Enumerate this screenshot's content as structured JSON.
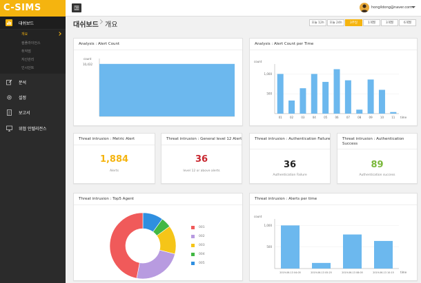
{
  "app": {
    "logo": "C-SIMS"
  },
  "sidebar": {
    "items": [
      {
        "label": "대쉬보드",
        "icon": "bar-chart-icon"
      },
      {
        "label": "분석",
        "icon": "edit-icon"
      },
      {
        "label": "설정",
        "icon": "gear-icon"
      },
      {
        "label": "보고서",
        "icon": "report-icon"
      },
      {
        "label": "위협 인텔리전스",
        "icon": "monitor-icon"
      }
    ],
    "submenu": [
      {
        "label": "개요"
      },
      {
        "label": "컴플라이언스"
      },
      {
        "label": "취약점"
      },
      {
        "label": "자산관리"
      },
      {
        "label": "인시던트"
      }
    ]
  },
  "topbar": {
    "user_email": "hongildong@naver.com"
  },
  "header": {
    "title": "대쉬보드",
    "breadcrumb": "개요"
  },
  "time_ranges": [
    {
      "label": "오늘 12h"
    },
    {
      "label": "오늘 24h"
    },
    {
      "label": "3주일"
    },
    {
      "label": "1개월"
    },
    {
      "label": "3개월"
    },
    {
      "label": "6개월"
    }
  ],
  "active_range": "3주일",
  "cards": {
    "alert_count": {
      "title": "Analysis : Alert Count"
    },
    "alert_per_time": {
      "title": "Analysis : Alert Count per Time"
    },
    "metric_alert": {
      "title": "Threat intrusion : Metric Alert",
      "value": "1,884",
      "sub": "Alerts",
      "color": "#f5b40f"
    },
    "general_alert": {
      "title": "Threat intrusion : General level 12 Alert",
      "value": "36",
      "sub": "level 12 or above alerts",
      "color": "#c8262e"
    },
    "auth_failure": {
      "title": "Threat intrusion : Authentication Failure",
      "value": "36",
      "sub": "Authentication Failure",
      "color": "#222222"
    },
    "auth_success": {
      "title": "Threat intrusion : Authentication Success",
      "value": "89",
      "sub": "Authentication success",
      "color": "#7ab83a"
    },
    "top5_agent": {
      "title": "Threat intrusion : Top5 Agent"
    },
    "alerts_per_time": {
      "title": "Threat intrusion : Alerts per time"
    }
  },
  "colors": {
    "accent": "#f5b40f",
    "bar": "#6cb8ee",
    "sidebar": "#2b2b2b"
  },
  "chart_data": [
    {
      "type": "area",
      "title": "Analysis : Alert Count",
      "ylabel": "count",
      "yticks": [
        "10,432"
      ],
      "values": [
        10432,
        10432
      ],
      "ylim": [
        0,
        11500
      ]
    },
    {
      "type": "bar",
      "title": "Analysis : Alert Count per Time",
      "ylabel": "count",
      "xlabel": "time",
      "categories": [
        "01",
        "02",
        "03",
        "04",
        "05",
        "06",
        "07",
        "08",
        "09",
        "10",
        "11"
      ],
      "values": [
        1000,
        330,
        640,
        1000,
        800,
        1120,
        840,
        100,
        860,
        600,
        40
      ],
      "yticks": [
        "1,000",
        "500"
      ],
      "ylim": [
        0,
        1250
      ]
    },
    {
      "type": "pie",
      "title": "Threat intrusion : Top5 Agent",
      "labels": [
        "001",
        "002",
        "003",
        "004",
        "005"
      ],
      "values": [
        47,
        24,
        14,
        5,
        10
      ],
      "colors": [
        "#f05a5a",
        "#b89be0",
        "#f5c518",
        "#42b844",
        "#2f8fe0"
      ]
    },
    {
      "type": "bar",
      "title": "Threat intrusion : Alerts per time",
      "ylabel": "count",
      "xlabel": "time",
      "categories": [
        "2019-06-13 04:05",
        "2019-06-13 05:25",
        "2019-06-13 08:05",
        "2019-06-13 10:15"
      ],
      "values": [
        1000,
        130,
        790,
        640
      ],
      "yticks": [
        "1,000",
        "500"
      ],
      "ylim": [
        0,
        1150
      ]
    }
  ]
}
